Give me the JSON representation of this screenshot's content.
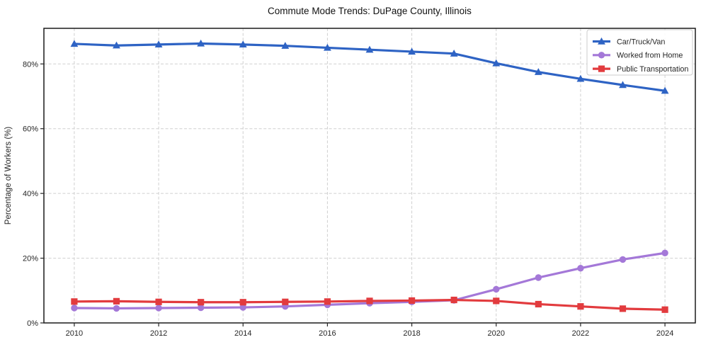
{
  "figure": {
    "background": "#ffffff"
  },
  "chart_data": {
    "type": "line",
    "title": "Commute Mode Trends: DuPage County, Illinois",
    "xlabel": "",
    "ylabel": "Percentage of Workers (%)",
    "x": [
      2010,
      2011,
      2012,
      2013,
      2014,
      2015,
      2016,
      2017,
      2018,
      2019,
      2020,
      2021,
      2022,
      2023,
      2024
    ],
    "x_ticks": [
      2010,
      2012,
      2014,
      2016,
      2018,
      2020,
      2022,
      2024
    ],
    "y_ticks": [
      0,
      20,
      40,
      60,
      80
    ],
    "y_tick_suffix": "%",
    "xlim": [
      2009.28,
      2024.72
    ],
    "ylim": [
      0,
      91
    ],
    "grid": true,
    "grid_style": "dashed",
    "legend_position": "upper right",
    "series": [
      {
        "name": "Car/Truck/Van",
        "color": "#2e63c4",
        "marker": "triangle",
        "values": [
          86.2,
          85.7,
          86.0,
          86.3,
          86.0,
          85.6,
          85.0,
          84.4,
          83.8,
          83.2,
          80.2,
          77.5,
          75.4,
          73.5,
          71.7
        ]
      },
      {
        "name": "Worked from Home",
        "color": "#a478d8",
        "marker": "circle",
        "values": [
          4.6,
          4.5,
          4.6,
          4.7,
          4.8,
          5.1,
          5.6,
          6.1,
          6.5,
          7.0,
          10.4,
          14.0,
          16.9,
          19.6,
          21.6
        ]
      },
      {
        "name": "Public Transportation",
        "color": "#e23b3e",
        "marker": "square",
        "values": [
          6.6,
          6.7,
          6.5,
          6.4,
          6.4,
          6.5,
          6.6,
          6.8,
          6.9,
          7.1,
          6.8,
          5.8,
          5.1,
          4.4,
          4.1
        ]
      }
    ]
  },
  "colors": {
    "grid": "#cfcfcf",
    "spine": "#1a1a1a",
    "tick": "#262626",
    "legend_border": "#cccccc",
    "legend_bg": "#ffffff"
  }
}
